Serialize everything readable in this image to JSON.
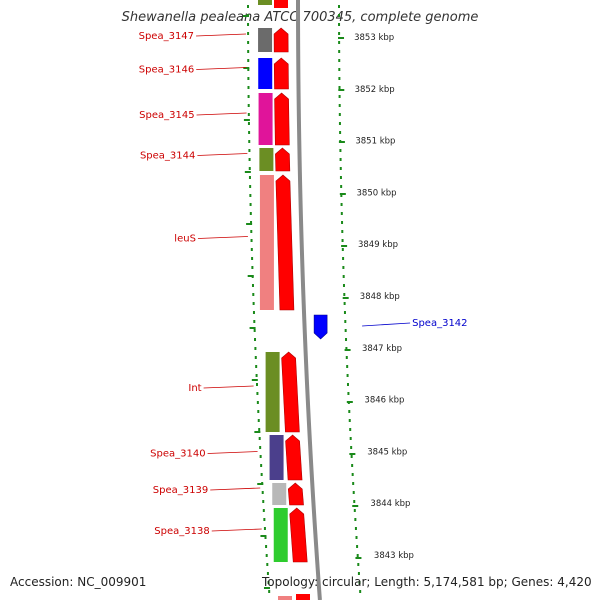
{
  "title": "Shewanella pealeana ATCC 700345, complete genome",
  "accession": "Accession: NC_009901",
  "topology": "Topology: circular; Length: 5,174,581 bp; Genes: 4,420",
  "colors": {
    "reverse_label": "#cc0000",
    "forward_label": "#0000cc",
    "backbone": "#8a8a8a",
    "tick": "#1a8a1a"
  },
  "kbp_labels": [
    "3853 kbp",
    "3852 kbp",
    "3851 kbp",
    "3850 kbp",
    "3849 kbp",
    "3848 kbp",
    "3847 kbp",
    "3846 kbp",
    "3845 kbp",
    "3844 kbp",
    "3843 kbp"
  ],
  "genes": [
    {
      "label": "Spea_3147",
      "strand": "reverse",
      "color": "#6b6b6b"
    },
    {
      "label": "Spea_3146",
      "strand": "reverse",
      "color": "#0000ff"
    },
    {
      "label": "Spea_3145",
      "strand": "reverse",
      "color": "#e0149a"
    },
    {
      "label": "Spea_3144",
      "strand": "reverse",
      "color": "#6b8e23"
    },
    {
      "label": "leuS",
      "strand": "reverse",
      "color": "#f08080"
    },
    {
      "label": "Spea_3142",
      "strand": "forward",
      "color": "#0000ff"
    },
    {
      "label": "Int",
      "strand": "reverse",
      "color": "#6b8e23"
    },
    {
      "label": "Spea_3140",
      "strand": "reverse",
      "color": "#4b3f8c"
    },
    {
      "label": "Spea_3139",
      "strand": "reverse",
      "color": "#b8b8b8"
    },
    {
      "label": "Spea_3138",
      "strand": "reverse",
      "color": "#2ecc2e"
    }
  ]
}
